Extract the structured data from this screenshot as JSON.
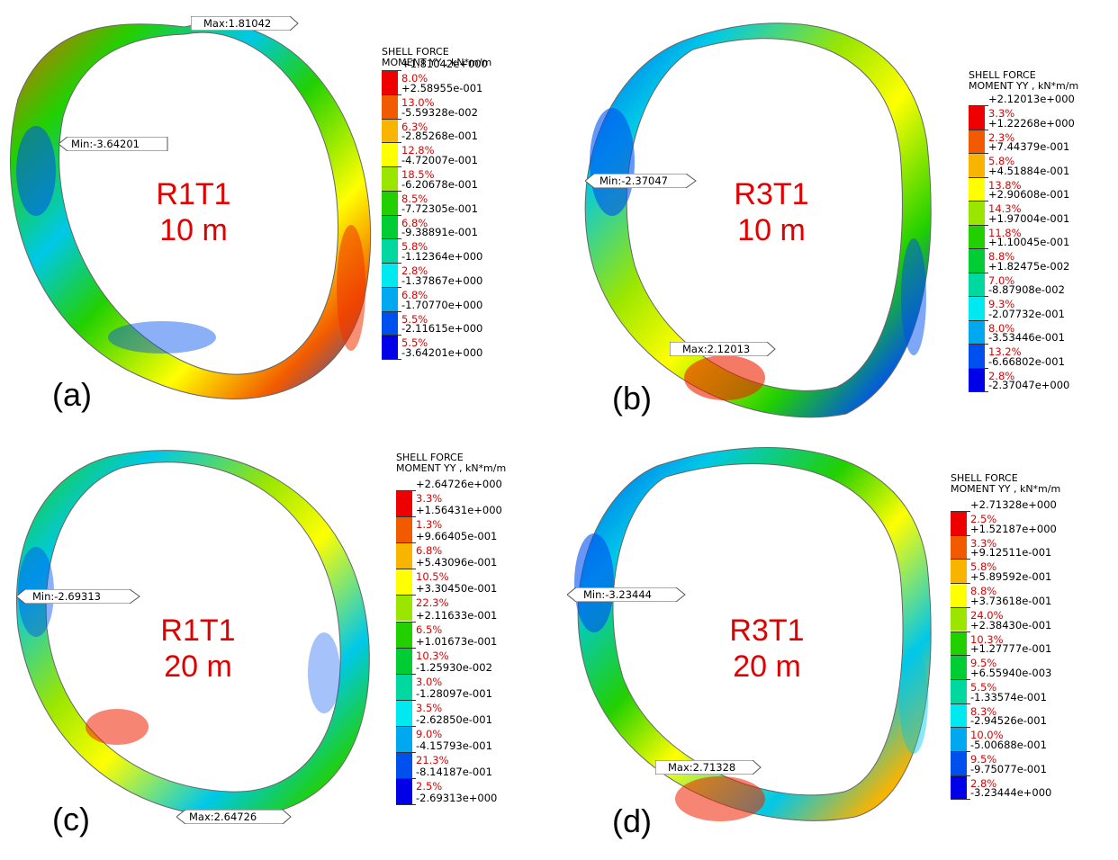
{
  "panels": [
    {
      "letter": "(a)",
      "case_name": "R1T1",
      "height_label": "10 m",
      "legend": {
        "title_line1": "SHELL FORCE",
        "title_line2": "MOMENT YY , kN*m/m",
        "bounds": [
          "+1.81042e+000",
          "+2.58955e-001",
          "-5.59328e-002",
          "-2.85268e-001",
          "-4.72007e-001",
          "-6.20678e-001",
          "-7.72305e-001",
          "-9.38891e-001",
          "-1.12364e+000",
          "-1.37867e+000",
          "-1.70770e+000",
          "-2.11615e+000",
          "-3.64201e+000"
        ],
        "percents": [
          "8.0%",
          "13.0%",
          "6.3%",
          "12.8%",
          "18.5%",
          "8.5%",
          "6.8%",
          "5.8%",
          "2.8%",
          "6.8%",
          "5.5%",
          "5.5%"
        ]
      },
      "max_tag": "Max:1.81042",
      "min_tag": "Min:-3.64201"
    },
    {
      "letter": "(b)",
      "case_name": "R3T1",
      "height_label": "10 m",
      "legend": {
        "title_line1": "SHELL FORCE",
        "title_line2": "MOMENT YY , kN*m/m",
        "bounds": [
          "+2.12013e+000",
          "+1.22268e+000",
          "+7.44379e-001",
          "+4.51884e-001",
          "+2.90608e-001",
          "+1.97004e-001",
          "+1.10045e-001",
          "+1.82475e-002",
          "-8.87908e-002",
          "-2.07732e-001",
          "-3.53446e-001",
          "-6.66802e-001",
          "-2.37047e+000"
        ],
        "percents": [
          "3.3%",
          "2.3%",
          "5.8%",
          "13.8%",
          "14.3%",
          "11.8%",
          "8.8%",
          "7.0%",
          "9.3%",
          "8.0%",
          "13.2%",
          "2.8%"
        ]
      },
      "max_tag": "Max:2.12013",
      "min_tag": "Min:-2.37047"
    },
    {
      "letter": "(c)",
      "case_name": "R1T1",
      "height_label": "20 m",
      "legend": {
        "title_line1": "SHELL FORCE",
        "title_line2": "MOMENT YY , kN*m/m",
        "bounds": [
          "+2.64726e+000",
          "+1.56431e+000",
          "+9.66405e-001",
          "+5.43096e-001",
          "+3.30450e-001",
          "+2.11633e-001",
          "+1.01673e-001",
          "-1.25930e-002",
          "-1.28097e-001",
          "-2.62850e-001",
          "-4.15793e-001",
          "-8.14187e-001",
          "-2.69313e+000"
        ],
        "percents": [
          "3.3%",
          "1.3%",
          "6.8%",
          "10.5%",
          "22.3%",
          "6.5%",
          "10.3%",
          "3.0%",
          "3.5%",
          "9.0%",
          "21.3%",
          "2.5%"
        ]
      },
      "max_tag": "Max:2.64726",
      "min_tag": "Min:-2.69313"
    },
    {
      "letter": "(d)",
      "case_name": "R3T1",
      "height_label": "20 m",
      "legend": {
        "title_line1": "SHELL FORCE",
        "title_line2": "MOMENT YY , kN*m/m",
        "bounds": [
          "+2.71328e+000",
          "+1.52187e+000",
          "+9.12511e-001",
          "+5.89592e-001",
          "+3.73618e-001",
          "+2.38430e-001",
          "+1.27777e-001",
          "+6.55940e-003",
          "-1.33574e-001",
          "-2.94526e-001",
          "-5.00688e-001",
          "-9.75077e-001",
          "-3.23444e+000"
        ],
        "percents": [
          "2.5%",
          "3.3%",
          "5.8%",
          "8.8%",
          "24.0%",
          "10.3%",
          "9.5%",
          "5.5%",
          "8.3%",
          "10.0%",
          "9.5%",
          "2.8%"
        ]
      },
      "max_tag": "Max:2.71328",
      "min_tag": "Min:-3.23444"
    }
  ],
  "color_scale": [
    "#ee0000",
    "#f25a00",
    "#f9b400",
    "#ffff00",
    "#9ae600",
    "#22d000",
    "#00cc33",
    "#00d8a0",
    "#00e8f0",
    "#00a8f0",
    "#0050f0",
    "#0000e8"
  ]
}
